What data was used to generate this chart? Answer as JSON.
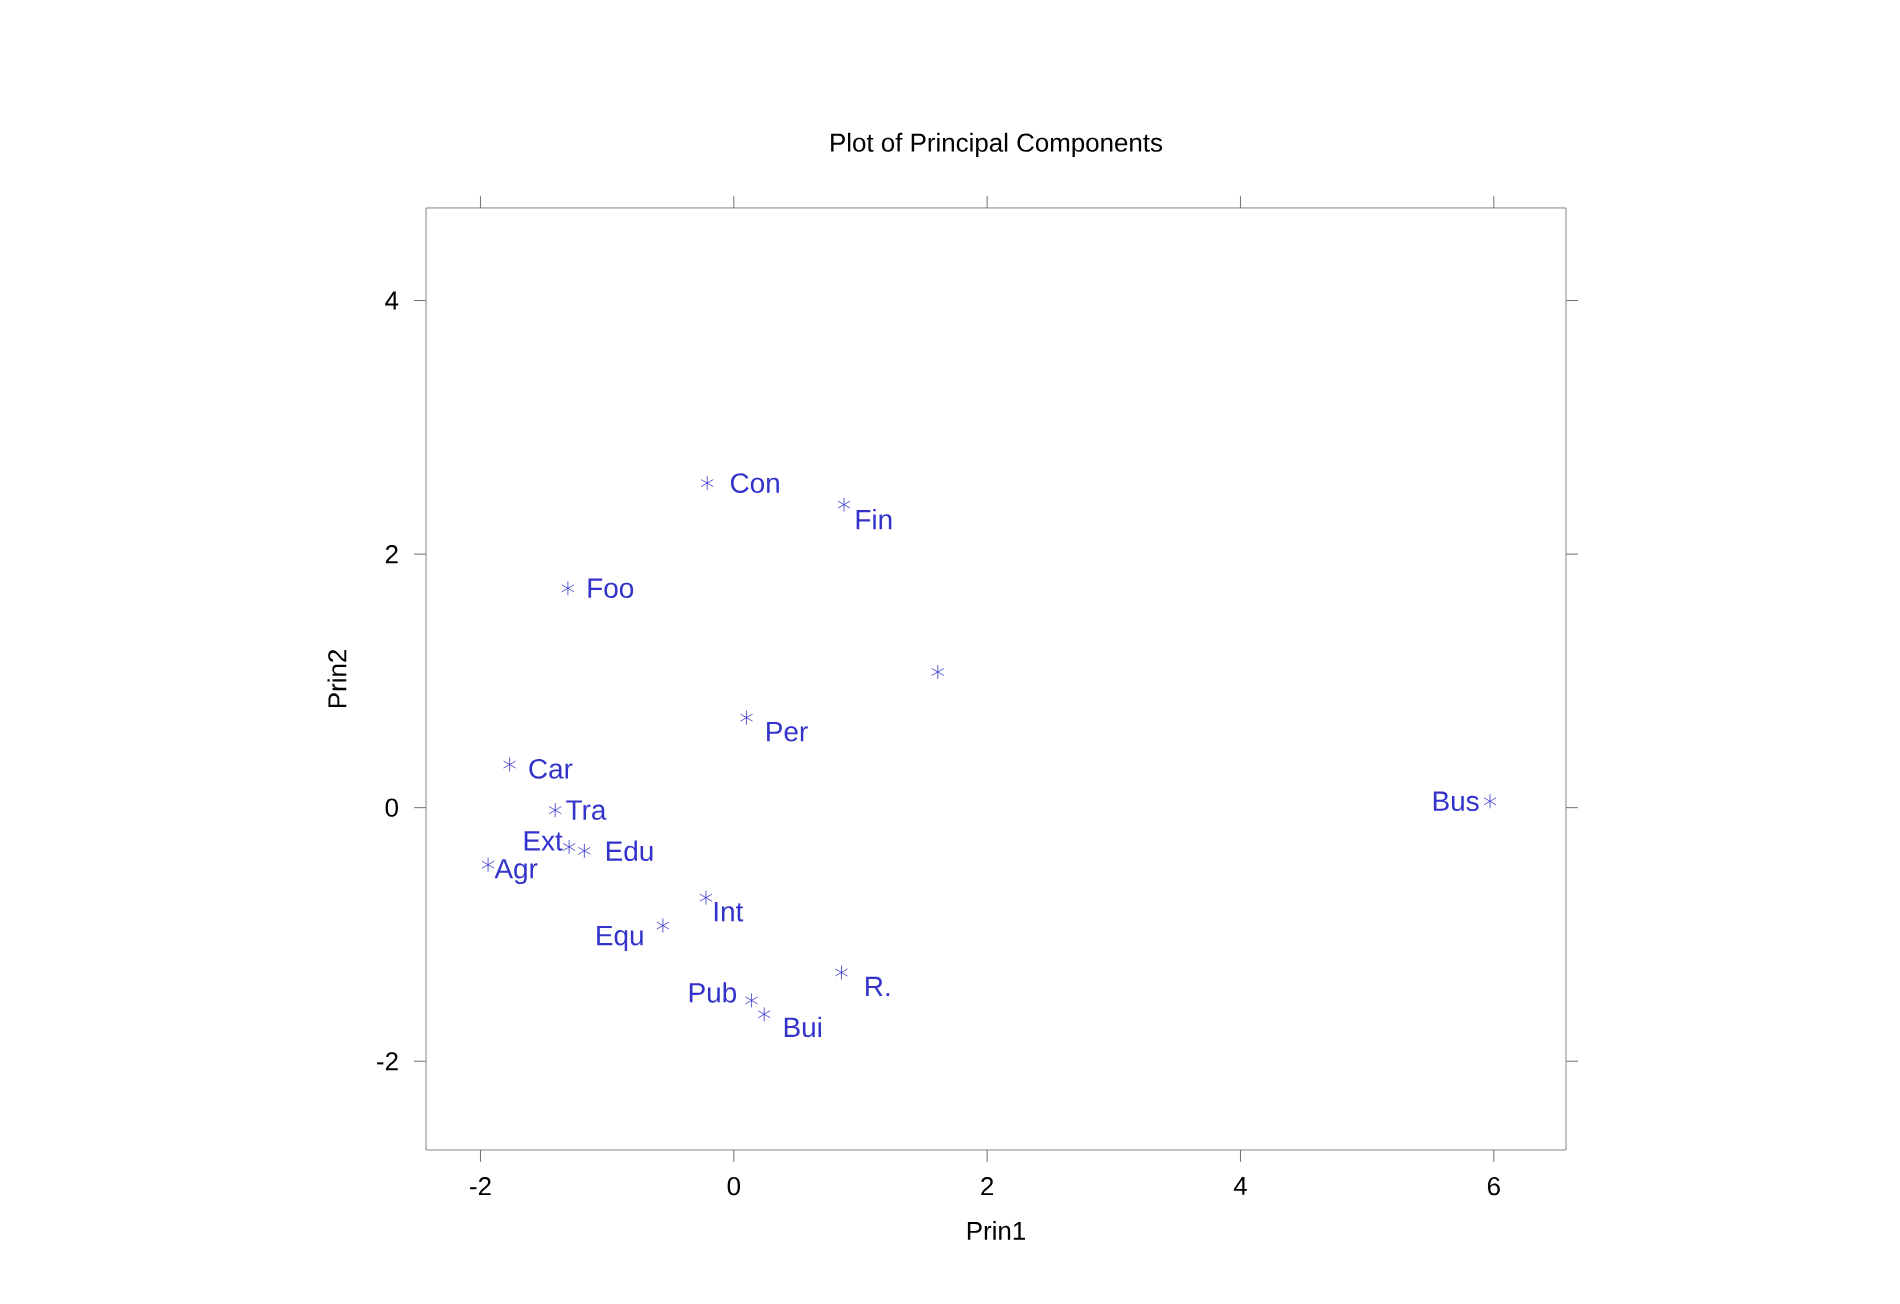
{
  "chart_data": {
    "type": "scatter",
    "title": "Plot of Principal Components",
    "xlabel": "Prin1",
    "ylabel": "Prin2",
    "x": [
      -0.21,
      0.87,
      -1.31,
      1.61,
      0.1,
      -1.77,
      -1.41,
      5.97,
      -1.3,
      -1.18,
      -1.94,
      -0.22,
      -0.56,
      0.85,
      0.14,
      0.24
    ],
    "values": [
      2.56,
      2.39,
      1.73,
      1.07,
      0.71,
      0.34,
      -0.02,
      0.05,
      -0.31,
      -0.34,
      -0.45,
      -0.71,
      -0.93,
      -1.3,
      -1.52,
      -1.63
    ],
    "color": "#3333cc",
    "marker": "cross",
    "grid": false,
    "xlim": [
      -2.43,
      6.57
    ],
    "ylim": [
      -2.7,
      4.73
    ],
    "xticks": [
      -2,
      0,
      2,
      4,
      6
    ],
    "yticks": [
      -2,
      0,
      2,
      4
    ],
    "annotations": [
      {
        "text": "Con",
        "x": -0.21,
        "y": 2.56
      },
      {
        "text": "Fin",
        "x": 0.87,
        "y": 2.39
      },
      {
        "text": "Foo",
        "x": -1.31,
        "y": 1.73
      },
      {
        "text": "Per",
        "x": 0.1,
        "y": 0.71
      },
      {
        "text": "Car",
        "x": -1.77,
        "y": 0.34
      },
      {
        "text": "Tra",
        "x": -1.41,
        "y": -0.02
      },
      {
        "text": "Bus",
        "x": 5.97,
        "y": 0.05
      },
      {
        "text": "Ext",
        "x": -1.3,
        "y": -0.31
      },
      {
        "text": "Edu",
        "x": -1.18,
        "y": -0.34
      },
      {
        "text": "Agr",
        "x": -1.94,
        "y": -0.45
      },
      {
        "text": "Int",
        "x": -0.22,
        "y": -0.71
      },
      {
        "text": "Equ",
        "x": -0.56,
        "y": -0.93
      },
      {
        "text": "R.",
        "x": 0.85,
        "y": -1.3
      },
      {
        "text": "Pub",
        "x": 0.14,
        "y": -1.52
      },
      {
        "text": "Bui",
        "x": 0.24,
        "y": -1.63
      }
    ]
  }
}
